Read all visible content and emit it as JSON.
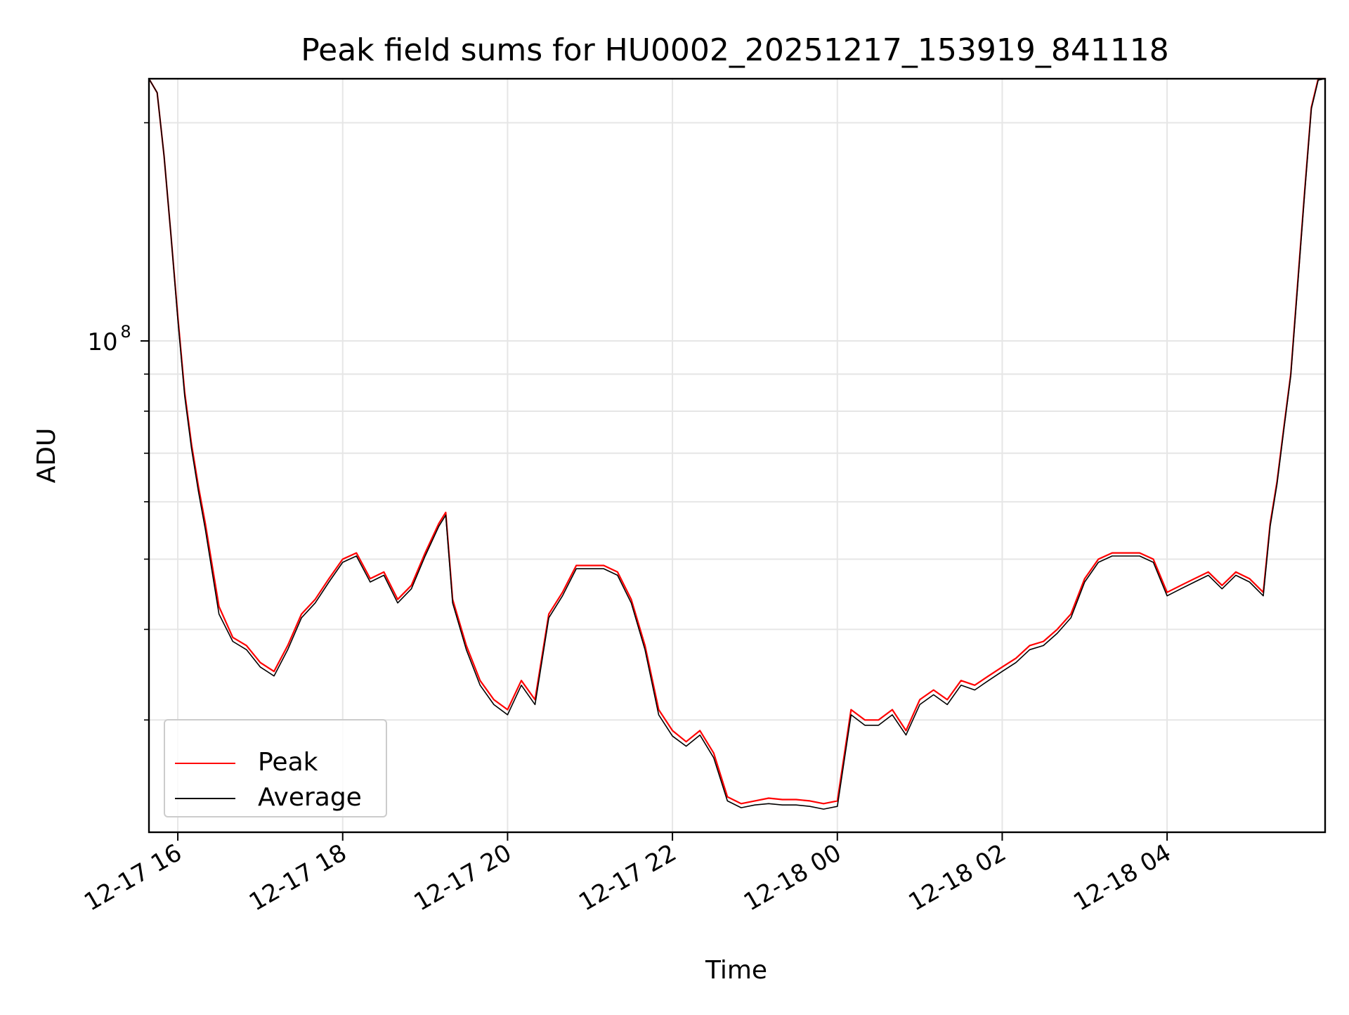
{
  "chart_data": {
    "type": "line",
    "title": "Peak field sums for HU0002_20251217_153919_841118",
    "xlabel": "Time",
    "ylabel": "ADU",
    "yscale": "log",
    "grid": true,
    "legend_placement": "lower-left",
    "x_ticks": [
      "12-17 16",
      "12-17 18",
      "12-17 20",
      "12-17 22",
      "12-18 00",
      "12-18 02",
      "12-18 04"
    ],
    "y_ticks": [
      {
        "value": 100000000,
        "label": "10",
        "exponent": "8"
      }
    ],
    "xlim": [
      "2025-12-17 15:39",
      "2025-12-18 05:55"
    ],
    "ylim": [
      21000000,
      230000000
    ],
    "colors": {
      "Peak": "#ff0000",
      "Average": "#000000"
    },
    "x": [
      "2025-12-17 15:39",
      "2025-12-17 15:45",
      "2025-12-17 15:50",
      "2025-12-17 15:55",
      "2025-12-17 16:00",
      "2025-12-17 16:05",
      "2025-12-17 16:10",
      "2025-12-17 16:15",
      "2025-12-17 16:20",
      "2025-12-17 16:25",
      "2025-12-17 16:30",
      "2025-12-17 16:40",
      "2025-12-17 16:50",
      "2025-12-17 17:00",
      "2025-12-17 17:10",
      "2025-12-17 17:20",
      "2025-12-17 17:30",
      "2025-12-17 17:40",
      "2025-12-17 17:50",
      "2025-12-17 18:00",
      "2025-12-17 18:10",
      "2025-12-17 18:20",
      "2025-12-17 18:30",
      "2025-12-17 18:40",
      "2025-12-17 18:50",
      "2025-12-17 19:00",
      "2025-12-17 19:10",
      "2025-12-17 19:15",
      "2025-12-17 19:20",
      "2025-12-17 19:30",
      "2025-12-17 19:40",
      "2025-12-17 19:50",
      "2025-12-17 20:00",
      "2025-12-17 20:10",
      "2025-12-17 20:20",
      "2025-12-17 20:30",
      "2025-12-17 20:40",
      "2025-12-17 20:50",
      "2025-12-17 21:00",
      "2025-12-17 21:10",
      "2025-12-17 21:20",
      "2025-12-17 21:30",
      "2025-12-17 21:40",
      "2025-12-17 21:50",
      "2025-12-17 22:00",
      "2025-12-17 22:10",
      "2025-12-17 22:20",
      "2025-12-17 22:30",
      "2025-12-17 22:40",
      "2025-12-17 22:50",
      "2025-12-17 23:00",
      "2025-12-17 23:10",
      "2025-12-17 23:20",
      "2025-12-17 23:30",
      "2025-12-17 23:40",
      "2025-12-17 23:50",
      "2025-12-18 00:00",
      "2025-12-18 00:10",
      "2025-12-18 00:20",
      "2025-12-18 00:30",
      "2025-12-18 00:40",
      "2025-12-18 00:50",
      "2025-12-18 01:00",
      "2025-12-18 01:10",
      "2025-12-18 01:20",
      "2025-12-18 01:30",
      "2025-12-18 01:40",
      "2025-12-18 01:50",
      "2025-12-18 02:00",
      "2025-12-18 02:10",
      "2025-12-18 02:20",
      "2025-12-18 02:30",
      "2025-12-18 02:40",
      "2025-12-18 02:50",
      "2025-12-18 03:00",
      "2025-12-18 03:10",
      "2025-12-18 03:20",
      "2025-12-18 03:30",
      "2025-12-18 03:40",
      "2025-12-18 03:50",
      "2025-12-18 04:00",
      "2025-12-18 04:10",
      "2025-12-18 04:20",
      "2025-12-18 04:30",
      "2025-12-18 04:40",
      "2025-12-18 04:50",
      "2025-12-18 05:00",
      "2025-12-18 05:10",
      "2025-12-18 05:15",
      "2025-12-18 05:20",
      "2025-12-18 05:25",
      "2025-12-18 05:30",
      "2025-12-18 05:35",
      "2025-12-18 05:40",
      "2025-12-18 05:45",
      "2025-12-18 05:50",
      "2025-12-18 05:55"
    ],
    "series": [
      {
        "name": "Peak",
        "values": [
          230000000,
          220000000,
          180000000,
          140000000,
          108000000,
          85000000,
          72000000,
          63000000,
          56000000,
          49000000,
          43000000,
          39000000,
          38000000,
          36000000,
          35000000,
          38000000,
          42000000,
          44000000,
          47000000,
          50000000,
          51000000,
          47000000,
          48000000,
          44000000,
          46000000,
          51000000,
          56000000,
          58000000,
          44000000,
          38000000,
          34000000,
          32000000,
          31000000,
          34000000,
          32000000,
          42000000,
          45000000,
          49000000,
          49000000,
          49000000,
          48000000,
          44000000,
          38000000,
          31000000,
          29000000,
          28000000,
          29000000,
          27000000,
          23500000,
          23000000,
          23200000,
          23400000,
          23300000,
          23300000,
          23200000,
          23000000,
          23200000,
          31000000,
          30000000,
          30000000,
          31000000,
          29000000,
          32000000,
          33000000,
          32000000,
          34000000,
          33500000,
          34500000,
          35500000,
          36500000,
          38000000,
          38500000,
          40000000,
          42000000,
          47000000,
          50000000,
          51000000,
          51000000,
          51000000,
          50000000,
          45000000,
          46000000,
          47000000,
          48000000,
          46000000,
          48000000,
          47000000,
          45000000,
          56000000,
          64000000,
          76000000,
          90000000,
          120000000,
          160000000,
          210000000,
          230000000,
          230000000
        ]
      },
      {
        "name": "Average",
        "values": [
          230000000,
          220000000,
          180000000,
          140000000,
          107000000,
          84000000,
          71000000,
          62000000,
          55000000,
          48000000,
          42000000,
          38500000,
          37500000,
          35500000,
          34500000,
          37500000,
          41500000,
          43500000,
          46500000,
          49500000,
          50500000,
          46500000,
          47500000,
          43500000,
          45500000,
          50500000,
          55500000,
          57500000,
          43500000,
          37500000,
          33500000,
          31500000,
          30500000,
          33500000,
          31500000,
          41500000,
          44500000,
          48500000,
          48500000,
          48500000,
          47500000,
          43500000,
          37500000,
          30500000,
          28500000,
          27600000,
          28600000,
          26600000,
          23200000,
          22700000,
          22900000,
          23000000,
          22900000,
          22900000,
          22800000,
          22600000,
          22800000,
          30500000,
          29500000,
          29500000,
          30500000,
          28600000,
          31500000,
          32500000,
          31500000,
          33500000,
          33000000,
          34000000,
          35000000,
          36000000,
          37500000,
          38000000,
          39500000,
          41500000,
          46500000,
          49500000,
          50500000,
          50500000,
          50500000,
          49500000,
          44500000,
          45500000,
          46500000,
          47500000,
          45500000,
          47500000,
          46500000,
          44500000,
          55500000,
          63500000,
          75500000,
          89500000,
          119000000,
          159000000,
          209000000,
          229000000,
          230000000
        ]
      }
    ]
  }
}
